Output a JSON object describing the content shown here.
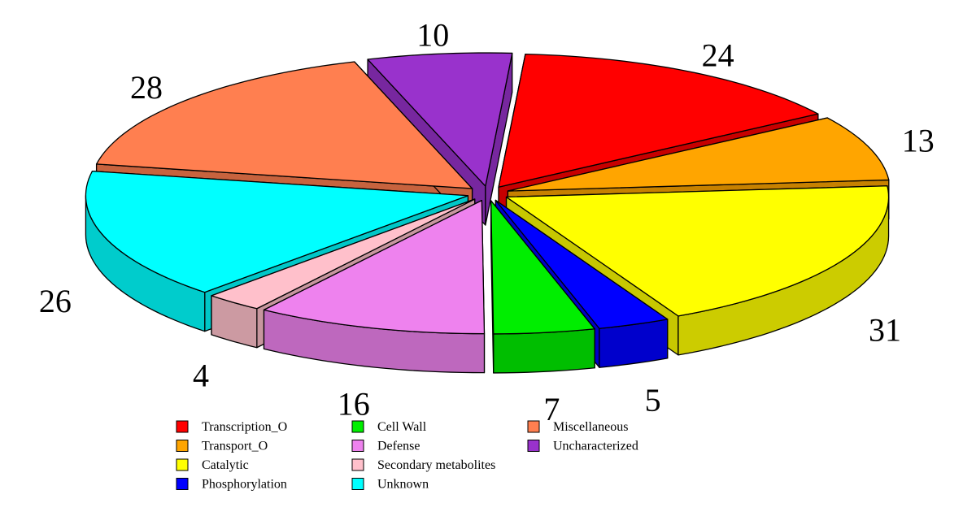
{
  "chart_data": {
    "type": "pie",
    "style": "3d-exploded",
    "categories": [
      "Transcription_O",
      "Transport_O",
      "Catalytic",
      "Phosphorylation",
      "Cell Wall",
      "Defense",
      "Secondary metabolites",
      "Unknown",
      "Miscellaneous",
      "Uncharacterized"
    ],
    "values": [
      24,
      13,
      31,
      5,
      7,
      16,
      4,
      26,
      28,
      10
    ],
    "value_labels": [
      "24",
      "13",
      "31",
      "5",
      "7",
      "16",
      "4",
      "26",
      "28",
      "10"
    ],
    "colors": [
      "#ff0000",
      "#ffa500",
      "#ffff00",
      "#0000ff",
      "#00ee00",
      "#ee82ee",
      "#ffc0cb",
      "#00ffff",
      "#ff7f50",
      "#9932cc"
    ],
    "legend_position": "bottom",
    "title": "",
    "xlabel": "",
    "ylabel": ""
  }
}
